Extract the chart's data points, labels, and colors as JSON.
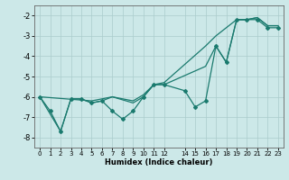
{
  "xlabel": "Humidex (Indice chaleur)",
  "bg_color": "#cce8e8",
  "grid_color": "#aacccc",
  "line_color": "#1a7a6e",
  "marker": "D",
  "markersize": 2.0,
  "linewidth": 0.9,
  "xlim": [
    -0.5,
    23.5
  ],
  "ylim": [
    -8.5,
    -1.5
  ],
  "xticks": [
    0,
    1,
    2,
    3,
    4,
    5,
    6,
    7,
    8,
    9,
    10,
    11,
    12,
    14,
    15,
    16,
    17,
    18,
    19,
    20,
    21,
    22,
    23
  ],
  "yticks": [
    -2,
    -3,
    -4,
    -5,
    -6,
    -7,
    -8
  ],
  "series1_x": [
    0,
    1,
    2,
    3,
    4,
    5,
    6,
    7,
    8,
    9,
    10,
    11,
    12,
    14,
    15,
    16,
    17,
    18,
    19,
    20,
    21,
    22,
    23
  ],
  "series1_y": [
    -6.0,
    -6.7,
    -7.7,
    -6.1,
    -6.1,
    -6.3,
    -6.2,
    -6.7,
    -7.1,
    -6.7,
    -6.0,
    -5.4,
    -5.4,
    -5.7,
    -6.5,
    -6.2,
    -3.5,
    -4.3,
    -2.2,
    -2.2,
    -2.2,
    -2.6,
    -2.6
  ],
  "series2_x": [
    0,
    2,
    3,
    4,
    5,
    6,
    7,
    9,
    10,
    11,
    12,
    16,
    17,
    18,
    19,
    20,
    21,
    22,
    23
  ],
  "series2_y": [
    -6.0,
    -7.7,
    -6.1,
    -6.1,
    -6.3,
    -6.2,
    -6.0,
    -6.3,
    -6.0,
    -5.4,
    -5.4,
    -4.5,
    -3.5,
    -4.3,
    -2.2,
    -2.2,
    -2.1,
    -2.5,
    -2.5
  ],
  "series3_x": [
    0,
    5,
    7,
    9,
    10,
    11,
    12,
    16,
    17,
    19,
    20,
    21,
    22,
    23
  ],
  "series3_y": [
    -6.0,
    -6.2,
    -6.0,
    -6.2,
    -5.9,
    -5.4,
    -5.3,
    -3.5,
    -3.0,
    -2.2,
    -2.2,
    -2.1,
    -2.5,
    -2.5
  ]
}
